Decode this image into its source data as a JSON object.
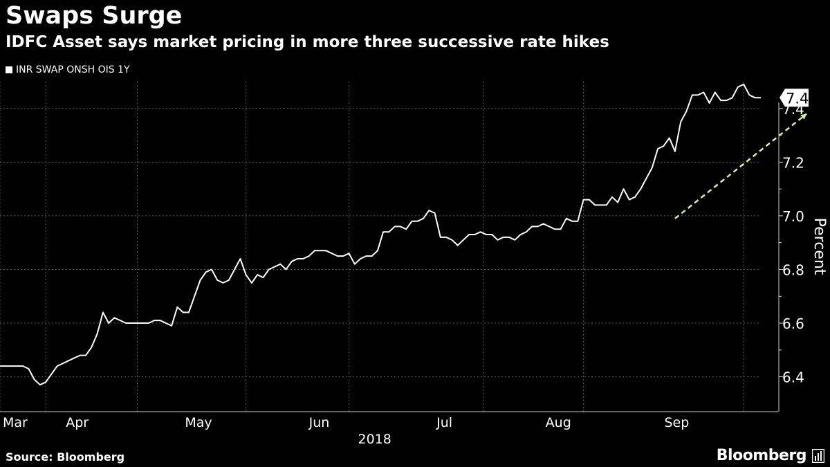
{
  "header": {
    "title": "Swaps Surge",
    "subtitle": "IDFC Asset says market pricing in more three successive rate hikes"
  },
  "footer": {
    "source": "Source: Bloomberg",
    "brand": "Bloomberg",
    "brand_icon": "bloomberg-terminal-icon"
  },
  "colors": {
    "background": "#000000",
    "line": "#ffffff",
    "trend": "#d7f0a4",
    "grid": "#5a5a5a",
    "label_box": "#ffffff",
    "label_text": "#000000"
  },
  "chart_data": {
    "type": "line",
    "title": "Swaps Surge",
    "subtitle": "IDFC Asset says market pricing in more three successive rate hikes",
    "xlabel": "2018",
    "ylabel": "Percent",
    "x_ticks": [
      "Mar",
      "Apr",
      "May",
      "Jun",
      "Jul",
      "Aug",
      "Sep"
    ],
    "y_ticks": [
      "6.4",
      "6.6",
      "6.8",
      "7.0",
      "7.2",
      "7.4"
    ],
    "ylim": [
      6.27,
      7.5
    ],
    "y_axis_side": "right",
    "grid": true,
    "legend_position": "top-left",
    "last_value_label": "7.4",
    "series": [
      {
        "name": "INR SWAP ONSH OIS 1Y",
        "values": [
          6.44,
          6.44,
          6.44,
          6.44,
          6.44,
          6.43,
          6.39,
          6.37,
          6.38,
          6.41,
          6.44,
          6.45,
          6.46,
          6.47,
          6.48,
          6.48,
          6.51,
          6.56,
          6.64,
          6.6,
          6.62,
          6.61,
          6.6,
          6.6,
          6.6,
          6.6,
          6.6,
          6.61,
          6.61,
          6.6,
          6.59,
          6.66,
          6.64,
          6.64,
          6.7,
          6.76,
          6.79,
          6.8,
          6.76,
          6.75,
          6.76,
          6.8,
          6.84,
          6.78,
          6.75,
          6.78,
          6.77,
          6.8,
          6.81,
          6.82,
          6.8,
          6.83,
          6.84,
          6.84,
          6.85,
          6.87,
          6.87,
          6.87,
          6.86,
          6.85,
          6.85,
          6.86,
          6.82,
          6.84,
          6.85,
          6.85,
          6.87,
          6.94,
          6.94,
          6.96,
          6.96,
          6.95,
          6.98,
          6.98,
          6.99,
          7.02,
          7.01,
          6.92,
          6.92,
          6.91,
          6.89,
          6.91,
          6.93,
          6.93,
          6.94,
          6.93,
          6.93,
          6.91,
          6.92,
          6.92,
          6.91,
          6.93,
          6.94,
          6.96,
          6.96,
          6.97,
          6.96,
          6.95,
          6.95,
          6.99,
          6.98,
          6.98,
          7.06,
          7.06,
          7.04,
          7.04,
          7.04,
          7.07,
          7.05,
          7.1,
          7.06,
          7.07,
          7.1,
          7.14,
          7.18,
          7.25,
          7.26,
          7.29,
          7.24,
          7.35,
          7.39,
          7.45,
          7.45,
          7.46,
          7.42,
          7.46,
          7.43,
          7.43,
          7.44,
          7.48,
          7.49,
          7.45,
          7.44,
          7.44
        ]
      },
      {
        "name": "",
        "style": "dashed",
        "x_index": [
          118,
          141
        ],
        "values": [
          6.99,
          7.38
        ]
      }
    ]
  }
}
